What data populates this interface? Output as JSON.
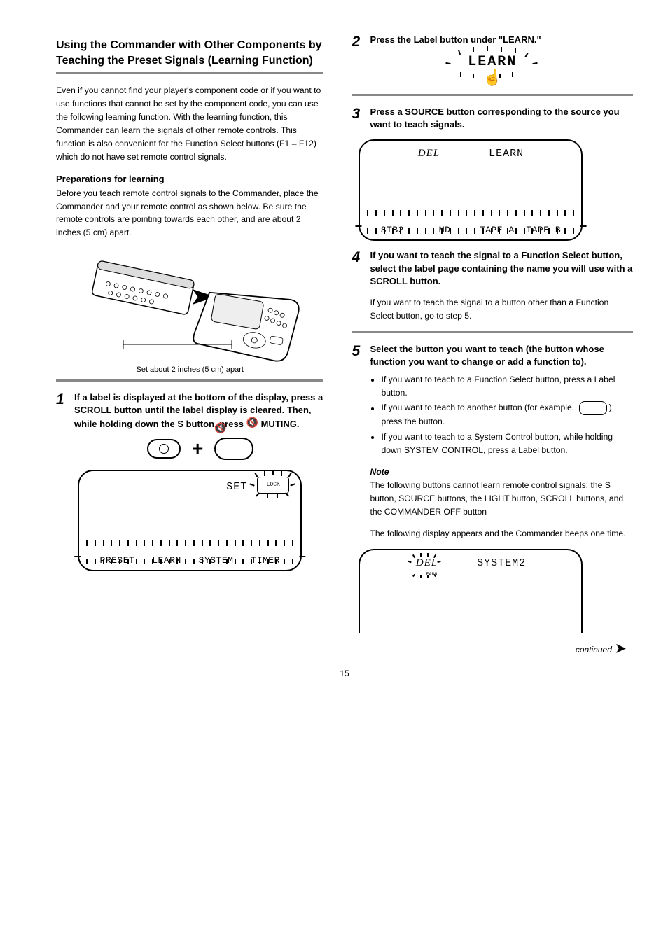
{
  "page_number": "15",
  "left": {
    "title": "Using the Commander with Other Components by Teaching the Preset Signals (Learning Function)",
    "intro": "Even if you cannot find your player's component code or if you want to use functions that cannot be set by the component code, you can use the following learning function. With the learning function, this Commander can learn the signals of other remote controls. This function is also convenient for the Function Select buttons (F1 – F12) which do not have set remote control signals.",
    "prep_heading": "Preparations for learning",
    "prep_text": "Before you teach remote control signals to the Commander, place the Commander and your remote control as shown below. Be sure the remote controls are pointing towards each other, and are about 2 inches (5 cm) apart.",
    "distance_label": "Set about 2 inches (5 cm) apart",
    "step1": {
      "num": "1",
      "text": "If a label is displayed at the bottom of the display, press a SCROLL button until the label display is cleared. Then, while holding down the S button, press MUTING."
    },
    "mute_symbol": "🔇",
    "mute_label": "MUTING",
    "lcd1": {
      "set": "SET",
      "lock": "LOCK",
      "labels": [
        "PRESET",
        "LEARN",
        "SYSTEM",
        "TIMER"
      ]
    }
  },
  "right": {
    "step2": {
      "num": "2",
      "text": "Press the Label button under \"LEARN.\""
    },
    "learn_word": "LEARN",
    "step3": {
      "num": "3",
      "text": "Press a SOURCE button corresponding to the source you want to teach signals."
    },
    "lcd2": {
      "del": "DEL",
      "learn": "LEARN",
      "labels": [
        "STB2",
        "MD",
        "TAPE A",
        "TAPE B"
      ]
    },
    "step4": {
      "num": "4",
      "text": "If you want to teach the signal to a Function Select button, select the label page containing the name you will use with a SCROLL button."
    },
    "step4_sub": "If you want to teach the signal to a button other than a Function Select button, go to step 5.",
    "step5": {
      "num": "5",
      "text": "Select the button you want to teach (the button whose function you want to change or add a function to)."
    },
    "step5_notes": [
      "If you want to teach to a Function Select button, press a Label button.",
      "If you want to teach to another button (for example,         ), press the button.",
      "If you want to teach to a System Control button, while holding down SYSTEM CONTROL, press a Label button."
    ],
    "note_heading": "Note",
    "note_text": "The following buttons cannot learn remote control signals: the S button, SOURCE buttons, the LIGHT button, SCROLL buttons, and the COMMANDER OFF button",
    "step5_foot": "The following display appears and the Commander beeps one time.",
    "lcd3": {
      "del": "DEL",
      "learn_tiny": "LEARN",
      "sys2": "SYSTEM2"
    },
    "continued": "continued"
  },
  "colors": {
    "rule": "#888888",
    "text": "#000000",
    "bg": "#ffffff"
  }
}
